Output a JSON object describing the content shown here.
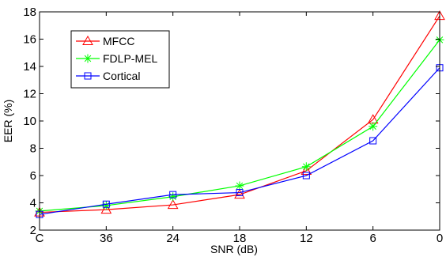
{
  "chart_data": {
    "type": "line",
    "title": "",
    "xlabel": "SNR (dB)",
    "ylabel": "EER (%)",
    "categories": [
      "C",
      "36",
      "24",
      "18",
      "12",
      "6",
      "0"
    ],
    "ylim": [
      2,
      18
    ],
    "yticks": [
      2,
      4,
      6,
      8,
      10,
      12,
      14,
      16,
      18
    ],
    "grid": false,
    "legend_position": "top-left",
    "series": [
      {
        "name": "MFCC",
        "color": "#ff0000",
        "marker": "triangle",
        "values": [
          3.3,
          3.5,
          3.85,
          4.6,
          6.35,
          10.1,
          17.7
        ]
      },
      {
        "name": "FDLP-MEL",
        "color": "#00ff00",
        "marker": "star",
        "values": [
          3.4,
          3.8,
          4.45,
          5.25,
          6.65,
          9.6,
          15.95
        ]
      },
      {
        "name": "Cortical",
        "color": "#0000ff",
        "marker": "square",
        "values": [
          3.15,
          3.9,
          4.6,
          4.75,
          6.0,
          8.55,
          13.9
        ]
      }
    ]
  }
}
